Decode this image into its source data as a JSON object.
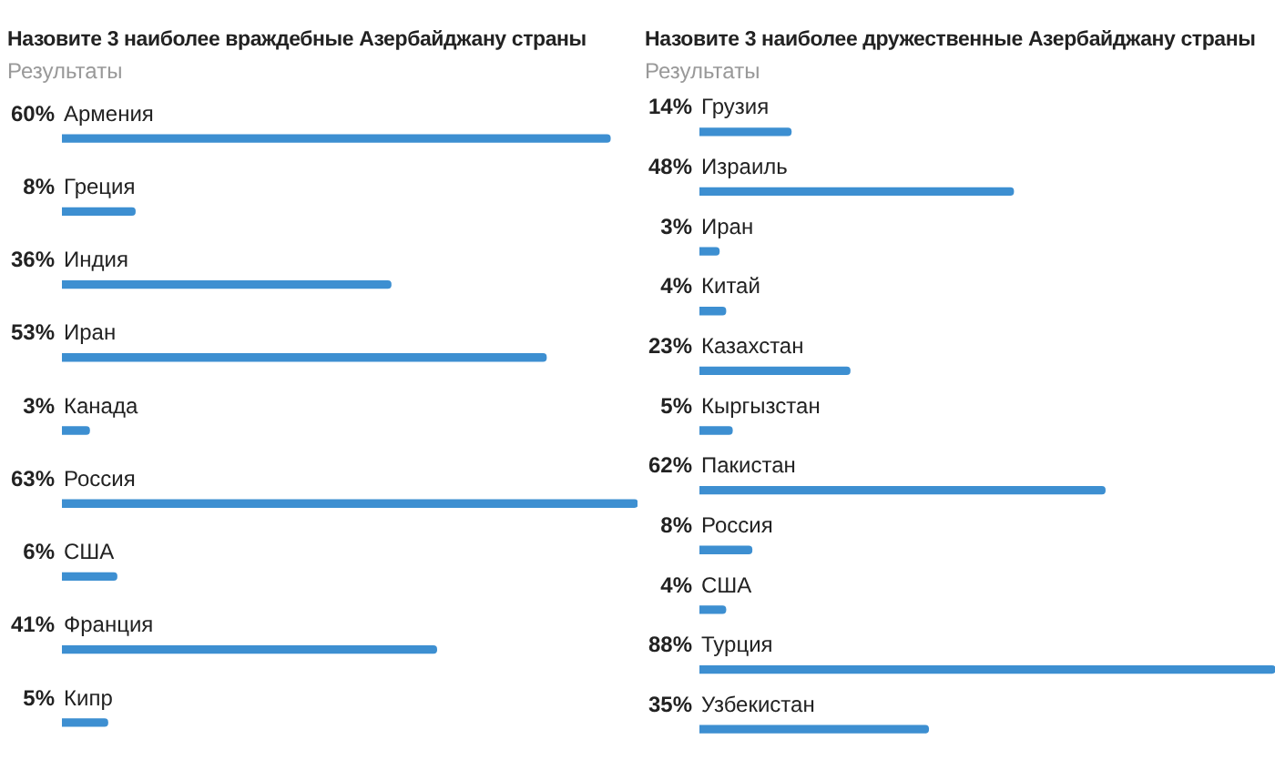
{
  "chart_data": [
    {
      "type": "bar",
      "orientation": "horizontal",
      "title": "Назовите 3 наиболее враждебные Азербайджану страны",
      "subtitle": "Результаты",
      "categories": [
        "Армения",
        "Греция",
        "Индия",
        "Иран",
        "Канада",
        "Россия",
        "США",
        "Франция",
        "Кипр"
      ],
      "values": [
        60,
        8,
        36,
        53,
        3,
        63,
        6,
        41,
        5
      ],
      "value_labels": [
        "60%",
        "8%",
        "36%",
        "53%",
        "3%",
        "63%",
        "6%",
        "41%",
        "5%"
      ],
      "color": "#3d8fd1"
    },
    {
      "type": "bar",
      "orientation": "horizontal",
      "title": "Назовите 3 наиболее дружественные Азербайджану страны",
      "subtitle": "Результаты",
      "categories": [
        "Грузия",
        "Израиль",
        "Иран",
        "Китай",
        "Казахстан",
        "Кыргызстан",
        "Пакистан",
        "Россия",
        "США",
        "Турция",
        "Узбекистан"
      ],
      "values": [
        14,
        48,
        3,
        4,
        23,
        5,
        62,
        8,
        4,
        88,
        35
      ],
      "value_labels": [
        "14%",
        "48%",
        "3%",
        "4%",
        "23%",
        "5%",
        "62%",
        "8%",
        "4%",
        "88%",
        "35%"
      ],
      "color": "#3d8fd1"
    }
  ]
}
